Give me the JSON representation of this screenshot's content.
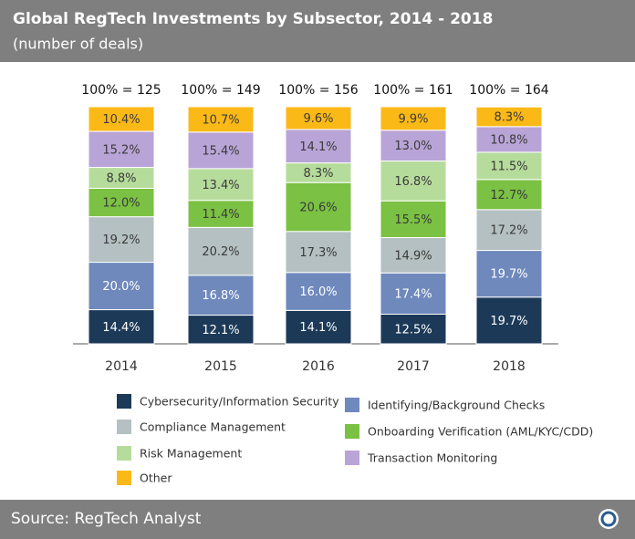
{
  "chart_data": {
    "type": "stacked_bar",
    "title": "Global RegTech Investments by Subsector, 2014 - 2018",
    "subtitle": "(number of deals)",
    "source": "Source: RegTech Analyst",
    "categories": [
      "2014",
      "2015",
      "2016",
      "2017",
      "2018"
    ],
    "total_labels": [
      "100% = 125",
      "100% = 149",
      "100% = 156",
      "100% = 161",
      "100% = 164"
    ],
    "ylim": [
      0,
      100
    ],
    "series": [
      {
        "name": "Cybersecurity/Information Security",
        "color": "#1c3a58",
        "label_color": "#ffffff",
        "values": [
          14.4,
          12.1,
          14.1,
          12.5,
          19.7
        ],
        "value_labels": [
          "14.4%",
          "12.1%",
          "14.1%",
          "12.5%",
          "19.7%"
        ]
      },
      {
        "name": "Identifying/Background Checks",
        "color": "#6f89bd",
        "label_color": "#ffffff",
        "values": [
          20.0,
          16.8,
          16.0,
          17.4,
          19.7
        ],
        "value_labels": [
          "20.0%",
          "16.8%",
          "16.0%",
          "17.4%",
          "19.7%"
        ]
      },
      {
        "name": "Compliance Management",
        "color": "#b4c0c1",
        "label_color": "#3a3a3a",
        "values": [
          19.2,
          20.2,
          17.3,
          14.9,
          17.2
        ],
        "value_labels": [
          "19.2%",
          "20.2%",
          "17.3%",
          "14.9%",
          "17.2%"
        ]
      },
      {
        "name": "Onboarding Verification (AML/KYC/CDD)",
        "color": "#7bc143",
        "label_color": "#3a3a3a",
        "values": [
          12.0,
          11.4,
          20.6,
          15.5,
          12.7
        ],
        "value_labels": [
          "12.0%",
          "11.4%",
          "20.6%",
          "15.5%",
          "12.7%"
        ]
      },
      {
        "name": "Risk Management",
        "color": "#b6dc9b",
        "label_color": "#3a3a3a",
        "values": [
          8.8,
          13.4,
          8.3,
          16.8,
          11.5
        ],
        "value_labels": [
          "8.8%",
          "13.4%",
          "8.3%",
          "16.8%",
          "11.5%"
        ]
      },
      {
        "name": "Transaction Monitoring",
        "color": "#b9a4d7",
        "label_color": "#3a3a3a",
        "values": [
          15.2,
          15.4,
          14.1,
          13.0,
          10.8
        ],
        "value_labels": [
          "15.2%",
          "15.4%",
          "14.1%",
          "13.0%",
          "10.8%"
        ]
      },
      {
        "name": "Other",
        "color": "#fbb918",
        "label_color": "#3a3a3a",
        "values": [
          10.4,
          10.7,
          9.6,
          9.9,
          8.3
        ],
        "value_labels": [
          "10.4%",
          "10.7%",
          "9.6%",
          "9.9%",
          "8.3%"
        ]
      }
    ]
  }
}
